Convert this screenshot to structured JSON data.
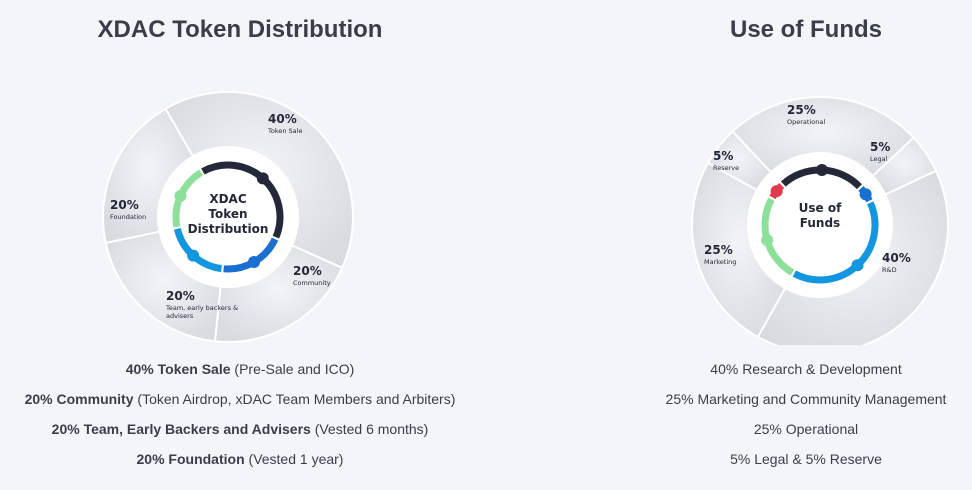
{
  "chart_data": [
    {
      "type": "pie",
      "title": "XDAC Token Distribution",
      "center_label": [
        "XDAC",
        "Token",
        "Distribution"
      ],
      "slices": [
        {
          "value": 40,
          "pct_label": "40%",
          "sub_label": [
            "Token Sale"
          ],
          "color": "#24293a"
        },
        {
          "value": 20,
          "pct_label": "20%",
          "sub_label": [
            "Community"
          ],
          "color": "#1a6fd0"
        },
        {
          "value": 20,
          "pct_label": "20%",
          "sub_label": [
            "Team, early backers &",
            "advisers"
          ],
          "color": "#1296e0"
        },
        {
          "value": 20,
          "pct_label": "20%",
          "sub_label": [
            "Foundation"
          ],
          "color": "#8de09a"
        }
      ],
      "legend": [
        {
          "bold": "40% Token Sale",
          "rest": " (Pre-Sale and ICO)"
        },
        {
          "bold": "20% Community",
          "rest": " (Token Airdrop, xDAC Team Members and Arbiters)"
        },
        {
          "bold": "20% Team, Early Backers and Advisers",
          "rest": " (Vested 6 months)"
        },
        {
          "bold": "20% Foundation",
          "rest": "  (Vested 1 year)"
        }
      ]
    },
    {
      "type": "pie",
      "title": "Use of Funds",
      "center_label": [
        "Use of",
        "Funds"
      ],
      "slices": [
        {
          "value": 25,
          "pct_label": "25%",
          "sub_label": [
            "Operational"
          ],
          "color": "#24293a"
        },
        {
          "value": 5,
          "pct_label": "5%",
          "sub_label": [
            "Legal"
          ],
          "color": "#1a6fd0"
        },
        {
          "value": 40,
          "pct_label": "40%",
          "sub_label": [
            "R&D"
          ],
          "color": "#1296e0"
        },
        {
          "value": 25,
          "pct_label": "25%",
          "sub_label": [
            "Marketing"
          ],
          "color": "#8de09a"
        },
        {
          "value": 5,
          "pct_label": "5%",
          "sub_label": [
            "Reserve"
          ],
          "color": "#e23b4e"
        }
      ],
      "legend": [
        {
          "bold": "",
          "rest": "40% Research & Development"
        },
        {
          "bold": "",
          "rest": "25% Marketing and Community Management"
        },
        {
          "bold": "",
          "rest": "25% Operational"
        },
        {
          "bold": "",
          "rest": "5% Legal & 5% Reserve"
        }
      ]
    }
  ]
}
